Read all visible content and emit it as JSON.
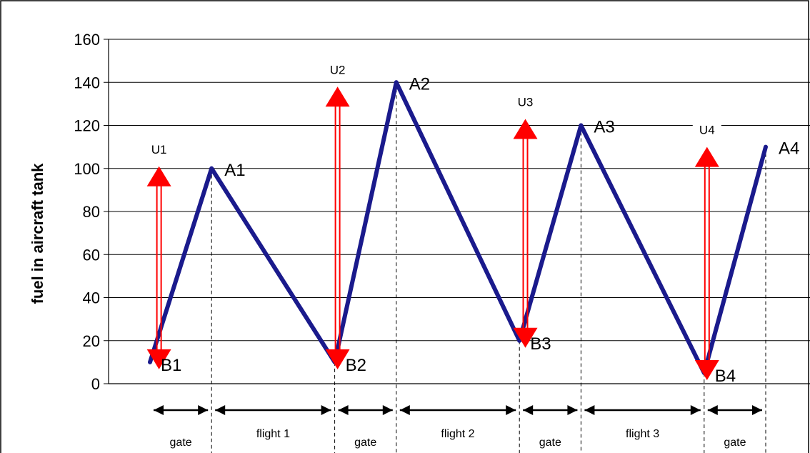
{
  "colors": {
    "fuel_line": "#1a1a8c",
    "refuel_arrow": "#ff0000",
    "grid": "#000000",
    "frame": "#000000"
  },
  "chart_data": {
    "type": "line",
    "title": "",
    "xlabel": "",
    "ylabel": "fuel in aircraft tank",
    "ylim": [
      0,
      160
    ],
    "y_ticks": [
      0,
      20,
      40,
      60,
      80,
      100,
      120,
      140,
      160
    ],
    "grid": "horizontal",
    "series": [
      {
        "points": [
          {
            "x": 0,
            "y": 10,
            "label": "B1"
          },
          {
            "x": 1,
            "y": 100,
            "label": "A1"
          },
          {
            "x": 3,
            "y": 10,
            "label": "B2"
          },
          {
            "x": 4,
            "y": 140,
            "label": "A2"
          },
          {
            "x": 6,
            "y": 20,
            "label": "B3"
          },
          {
            "x": 7,
            "y": 120,
            "label": "A3"
          },
          {
            "x": 9,
            "y": 5,
            "label": "B4"
          },
          {
            "x": 10,
            "y": 110,
            "label": "A4"
          }
        ]
      }
    ],
    "refuel_arrows": [
      {
        "label": "U1",
        "x": 0.1,
        "y_low": 10,
        "y_high": 99
      },
      {
        "label": "U2",
        "x": 3.0,
        "y_low": 10,
        "y_high": 136
      },
      {
        "label": "U3",
        "x": 6.05,
        "y_low": 20,
        "y_high": 121
      },
      {
        "label": "U4",
        "x": 9.0,
        "y_low": 5,
        "y_high": 108
      }
    ],
    "phases": [
      {
        "label": "gate",
        "x_start": 0,
        "x_end": 1
      },
      {
        "label": "flight 1",
        "x_start": 1,
        "x_end": 3
      },
      {
        "label": "gate",
        "x_start": 3,
        "x_end": 4
      },
      {
        "label": "flight 2",
        "x_start": 4,
        "x_end": 6
      },
      {
        "label": "gate",
        "x_start": 6,
        "x_end": 7
      },
      {
        "label": "flight 3",
        "x_start": 7,
        "x_end": 9
      },
      {
        "label": "gate",
        "x_start": 9,
        "x_end": 10
      }
    ]
  }
}
